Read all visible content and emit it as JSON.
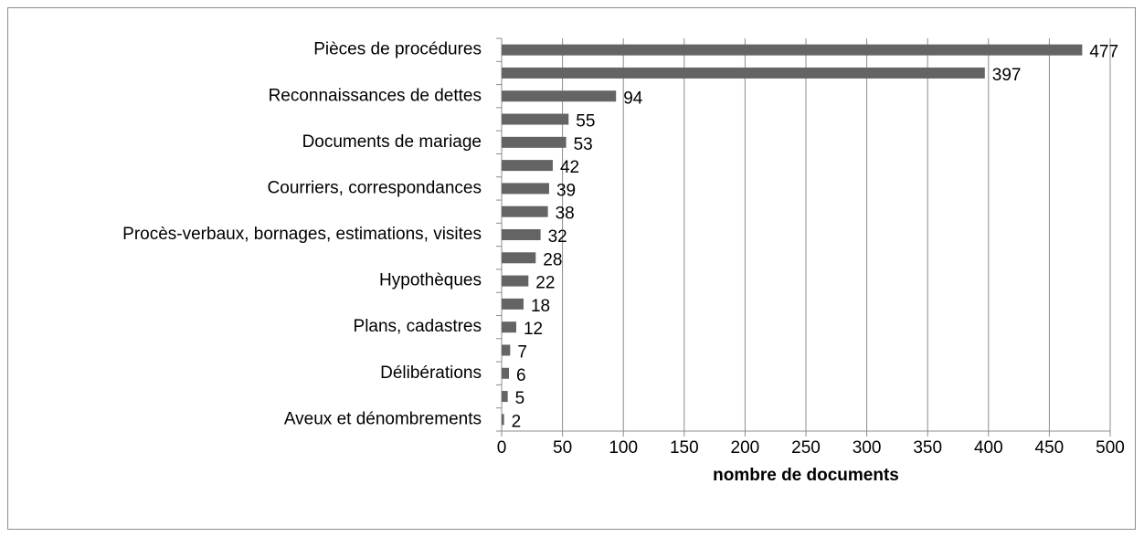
{
  "chart_data": {
    "type": "bar",
    "orientation": "horizontal",
    "x_label": "nombre de documents",
    "categories": [
      "Pièces de procédures",
      null,
      "Reconnaissances de dettes",
      null,
      "Documents de mariage",
      null,
      "Courriers, correspondances",
      null,
      "Procès-verbaux, bornages, estimations, visites",
      null,
      "Hypothèques",
      null,
      "Plans, cadastres",
      null,
      "Délibérations",
      null,
      "Aveux et dénombrements"
    ],
    "values": [
      477,
      397,
      94,
      55,
      53,
      42,
      39,
      38,
      32,
      28,
      22,
      18,
      12,
      7,
      6,
      5,
      2
    ],
    "color": "#646464",
    "xlim": [
      0,
      500
    ],
    "xticks": [
      0,
      50,
      100,
      150,
      200,
      250,
      300,
      350,
      400,
      450,
      500
    ],
    "grid": true
  }
}
